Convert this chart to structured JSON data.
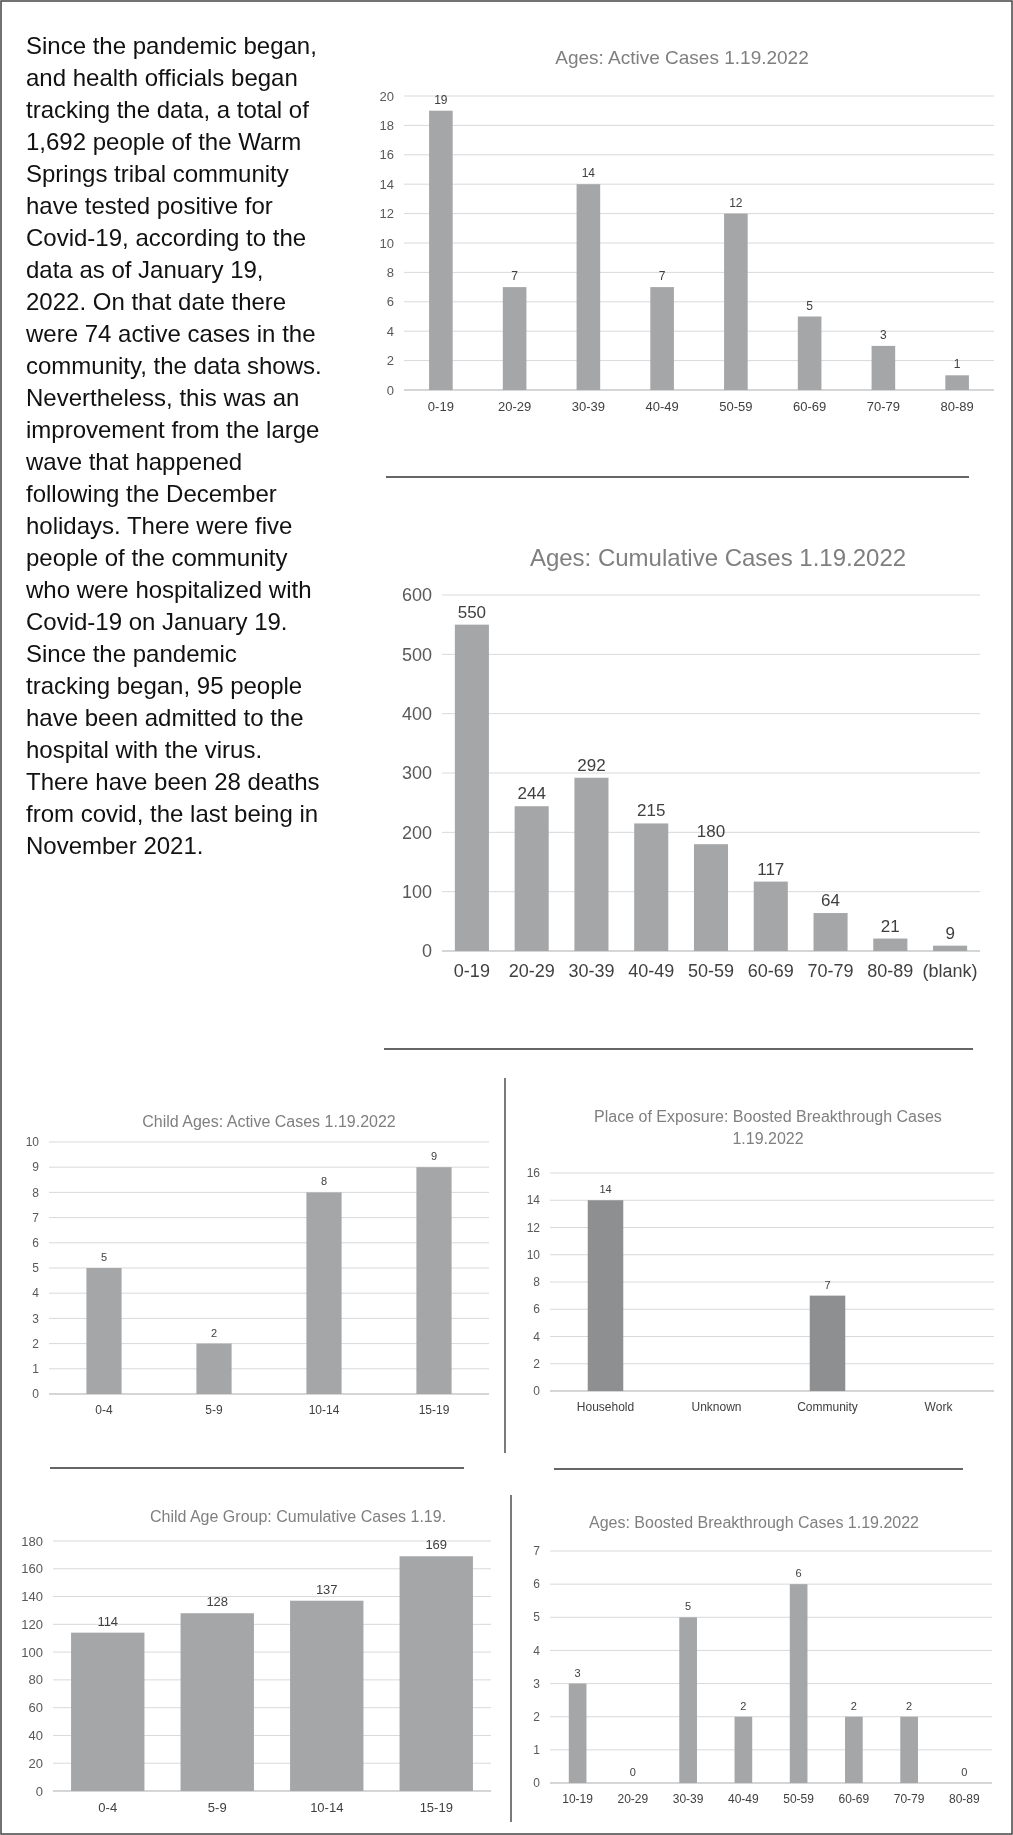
{
  "chart_data": [
    {
      "type": "other",
      "annotations": [
        "Since the pandemic began, and health officials began tracking the data, a total of 1,692 people of the Warm Springs tribal community have tested positive for Covid-19, according to the data as of January 19, 2022. On that date there were 74 active cases in the community, the data shows. Nevertheless, this was an improvement from the large wave that happened following the December holidays. There were five people of the community who were hospitalized with Covid-19 on January 19. Since the pandemic tracking began, 95 people have been admitted to the hospital with the virus. There have been 28 deaths from covid, the last being in November 2021."
      ]
    },
    {
      "type": "bar",
      "title": "Ages: Active Cases 1.19.2022",
      "categories": [
        "0-19",
        "20-29",
        "30-39",
        "40-49",
        "50-59",
        "60-69",
        "70-79",
        "80-89"
      ],
      "values": [
        19,
        7,
        14,
        7,
        12,
        5,
        3,
        1
      ],
      "color": "#a5a6a8",
      "ylim": [
        0,
        20
      ],
      "yticks": [
        0,
        2,
        4,
        6,
        8,
        10,
        12,
        14,
        16,
        18,
        20
      ],
      "grid": "y",
      "data_labels": true
    },
    {
      "type": "bar",
      "title": "Ages: Cumulative Cases 1.19.2022",
      "categories": [
        "0-19",
        "20-29",
        "30-39",
        "40-49",
        "50-59",
        "60-69",
        "70-79",
        "80-89",
        "(blank)"
      ],
      "values": [
        550,
        244,
        292,
        215,
        180,
        117,
        64,
        21,
        9
      ],
      "color": "#a5a6a8",
      "ylim": [
        0,
        600
      ],
      "yticks": [
        0,
        100,
        200,
        300,
        400,
        500,
        600
      ],
      "grid": "y",
      "data_labels": true
    },
    {
      "type": "bar",
      "title": "Child Ages: Active Cases 1.19.2022",
      "categories": [
        "0-4",
        "5-9",
        "10-14",
        "15-19"
      ],
      "values": [
        5,
        2,
        8,
        9
      ],
      "color": "#a5a6a8",
      "ylim": [
        0,
        10
      ],
      "yticks": [
        0,
        1,
        2,
        3,
        4,
        5,
        6,
        7,
        8,
        9,
        10
      ],
      "grid": "y",
      "data_labels": true
    },
    {
      "type": "bar",
      "title": "Place of Exposure: Boosted Breakthrough Cases 1.19.2022",
      "categories": [
        "Household",
        "Unknown",
        "Community",
        "Work"
      ],
      "values": [
        14,
        null,
        7,
        null
      ],
      "color": "#8e8f91",
      "ylim": [
        0,
        16
      ],
      "yticks": [
        0,
        2,
        4,
        6,
        8,
        10,
        12,
        14,
        16
      ],
      "grid": "y",
      "data_labels": true
    },
    {
      "type": "bar",
      "title": "Child Age Group: Cumulative Cases 1.19.",
      "categories": [
        "0-4",
        "5-9",
        "10-14",
        "15-19"
      ],
      "values": [
        114,
        128,
        137,
        169
      ],
      "color": "#a5a6a8",
      "ylim": [
        0,
        180
      ],
      "yticks": [
        0,
        20,
        40,
        60,
        80,
        100,
        120,
        140,
        160,
        180
      ],
      "grid": "y",
      "data_labels": true
    },
    {
      "type": "bar",
      "title": "Ages: Boosted Breakthrough Cases 1.19.2022",
      "categories": [
        "10-19",
        "20-29",
        "30-39",
        "40-49",
        "50-59",
        "60-69",
        "70-79",
        "80-89"
      ],
      "values": [
        3,
        0,
        5,
        2,
        6,
        2,
        2,
        0
      ],
      "color": "#a5a6a8",
      "ylim": [
        0,
        7
      ],
      "yticks": [
        0,
        1,
        2,
        3,
        4,
        5,
        6,
        7
      ],
      "grid": "y",
      "data_labels": true
    }
  ]
}
